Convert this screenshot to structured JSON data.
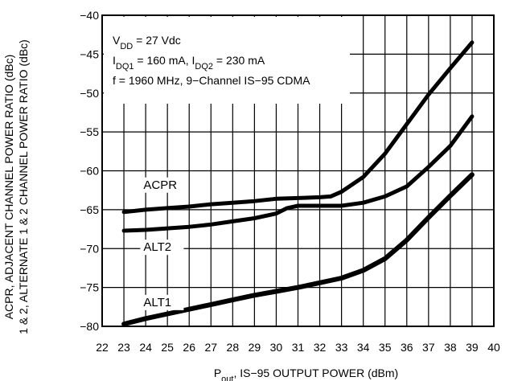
{
  "chart_data": {
    "type": "line",
    "xlabel": {
      "main": "P",
      "sub": "out",
      "rest": ", IS−95 OUTPUT POWER (dBm)"
    },
    "ylabel_lines": [
      "ACPR, ADJACENT CHANNEL POWER RATIO (dBc)",
      "1 & 2, ALTERNATE 1 & 2 CHANNEL POWER RATIO (dBc)"
    ],
    "xlim": [
      22,
      40
    ],
    "ylim": [
      -80,
      -40
    ],
    "x_ticks": [
      "22",
      "23",
      "24",
      "25",
      "26",
      "27",
      "28",
      "29",
      "30",
      "31",
      "32",
      "33",
      "34",
      "35",
      "36",
      "37",
      "38",
      "39",
      "40"
    ],
    "y_ticks": [
      "−40",
      "−45",
      "−50",
      "−55",
      "−60",
      "−65",
      "−70",
      "−75",
      "−80"
    ],
    "grid": true,
    "conditions": [
      {
        "main": "V",
        "sub": "DD",
        "rest": " = 27 Vdc"
      },
      {
        "main": "I",
        "sub": "DQ1",
        "rest": " = 160 mA, I",
        "sub2": "DQ2",
        "rest2": " = 230 mA"
      },
      {
        "main": "f = 1960 MHz, 9−Channel IS−95 CDMA"
      }
    ],
    "series": [
      {
        "name": "ACPR",
        "label_at": {
          "x": 23.9,
          "y": -62.3
        },
        "x": [
          23,
          24,
          25,
          26,
          27,
          28,
          29,
          30,
          31,
          32,
          32.5,
          33,
          34,
          35,
          36,
          37,
          38,
          39
        ],
        "y": [
          -65.3,
          -65.0,
          -64.8,
          -64.6,
          -64.3,
          -64.1,
          -63.9,
          -63.6,
          -63.5,
          -63.4,
          -63.3,
          -62.7,
          -60.8,
          -57.8,
          -54.0,
          -50.2,
          -46.8,
          -43.5
        ]
      },
      {
        "name": "ALT2",
        "label_at": {
          "x": 23.9,
          "y": -70.3
        },
        "x": [
          23,
          24,
          25,
          26,
          27,
          28,
          29,
          30,
          30.5,
          31,
          32,
          33,
          34,
          35,
          36,
          37,
          38,
          39
        ],
        "y": [
          -67.7,
          -67.6,
          -67.4,
          -67.2,
          -66.9,
          -66.5,
          -66.1,
          -65.5,
          -64.8,
          -64.5,
          -64.5,
          -64.5,
          -64.1,
          -63.3,
          -62.0,
          -59.5,
          -56.8,
          -53.0
        ]
      },
      {
        "name": "ALT1",
        "label_at": {
          "x": 23.9,
          "y": -77.4
        },
        "x": [
          23,
          24,
          25,
          26,
          27,
          28,
          29,
          30,
          31,
          32,
          33,
          34,
          35,
          36,
          37,
          38,
          39
        ],
        "y": [
          -79.7,
          -79.0,
          -78.4,
          -77.8,
          -77.2,
          -76.6,
          -76.0,
          -75.5,
          -75.0,
          -74.4,
          -73.8,
          -72.8,
          -71.3,
          -68.9,
          -66.0,
          -63.2,
          -60.5
        ]
      }
    ]
  }
}
